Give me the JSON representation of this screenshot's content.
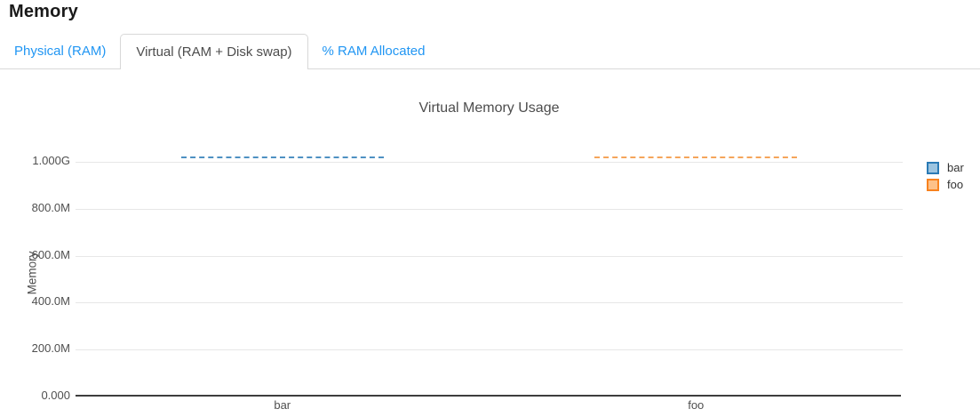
{
  "page": {
    "title": "Memory"
  },
  "tabs": {
    "items": [
      {
        "label": "Physical (RAM)",
        "active": false
      },
      {
        "label": "Virtual (RAM + Disk swap)",
        "active": true
      },
      {
        "label": "% RAM Allocated",
        "active": false
      }
    ]
  },
  "colors": {
    "tab_link_blue": "#2196f3",
    "tab_active_text": "#4d4d4d",
    "tab_border": "#d8d8d8",
    "gridline": "#e7e7e7",
    "axis_line": "#3d3d3d",
    "tick_text": "#4f4f4f",
    "series_bar_blue": "#4e91c2",
    "series_foo_orange": "#f5a55a"
  },
  "chart_data": {
    "type": "bar",
    "title": "Virtual Memory Usage",
    "ylabel": "Memory",
    "xlabel": "",
    "categories": [
      "bar",
      "foo"
    ],
    "series": [
      {
        "name": "bar",
        "values": [
          1.02,
          null
        ],
        "line_color": "#4e91c2",
        "swatch_border": "#2a7ab5",
        "swatch_fill": "#9cc4e0"
      },
      {
        "name": "foo",
        "values": [
          null,
          1.02
        ],
        "line_color": "#f5a55a",
        "swatch_border": "#f8821e",
        "swatch_fill": "#fdc189"
      }
    ],
    "unit": "bytes (SI, value in G)",
    "ylim": [
      0,
      1.083
    ],
    "y_ticks": [
      {
        "label": "1.000G",
        "value": 1.0
      },
      {
        "label": "800.0M",
        "value": 0.8
      },
      {
        "label": "600.0M",
        "value": 0.6
      },
      {
        "label": "400.0M",
        "value": 0.4
      },
      {
        "label": "200.0M",
        "value": 0.2
      },
      {
        "label": "0.000",
        "value": 0.0
      }
    ],
    "grid": true,
    "legend_position": "right",
    "bar_render_style": "dashed-top-edge-only",
    "bar_width_frac": 0.49
  }
}
